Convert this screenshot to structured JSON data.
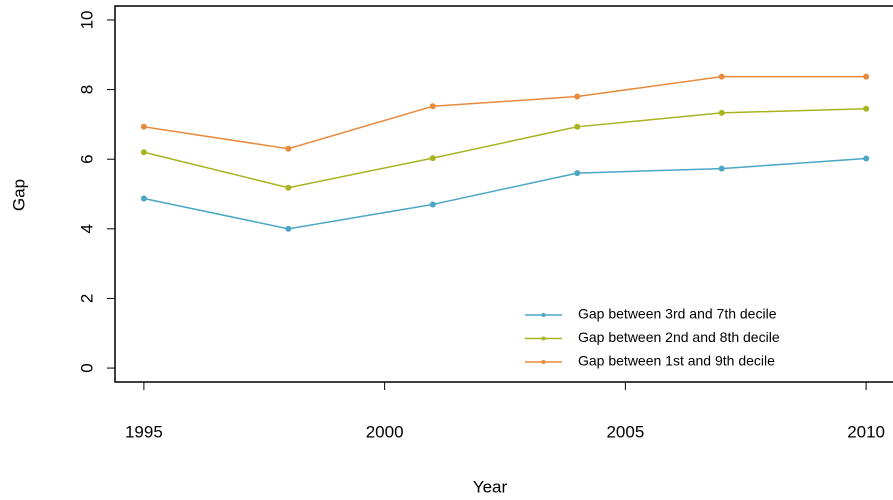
{
  "chart_data": {
    "type": "line",
    "x_label": "Year",
    "y_label": "Gap",
    "x": [
      1995,
      1998,
      2001,
      2004,
      2007,
      2010
    ],
    "series": [
      {
        "name": "Gap between 3rd and 7th decile",
        "color": "#4aa6c4",
        "values": [
          4.87,
          4.0,
          4.7,
          5.6,
          5.73,
          6.02
        ]
      },
      {
        "name": "Gap between 2nd and 8th decile",
        "color": "#a9b31f",
        "values": [
          6.2,
          5.18,
          6.03,
          6.93,
          7.33,
          7.45
        ]
      },
      {
        "name": "Gap between 1st and 9th decile",
        "color": "#e88a3c",
        "values": [
          6.93,
          6.3,
          7.52,
          7.8,
          8.37,
          8.37
        ]
      }
    ],
    "xlim": [
      1994.4,
      2010.6
    ],
    "xticks": [
      1995,
      2000,
      2005,
      2010
    ],
    "ylim": [
      -0.4,
      10.4
    ],
    "yticks": [
      0,
      2,
      4,
      6,
      8,
      10
    ],
    "legend": "bottomright"
  }
}
